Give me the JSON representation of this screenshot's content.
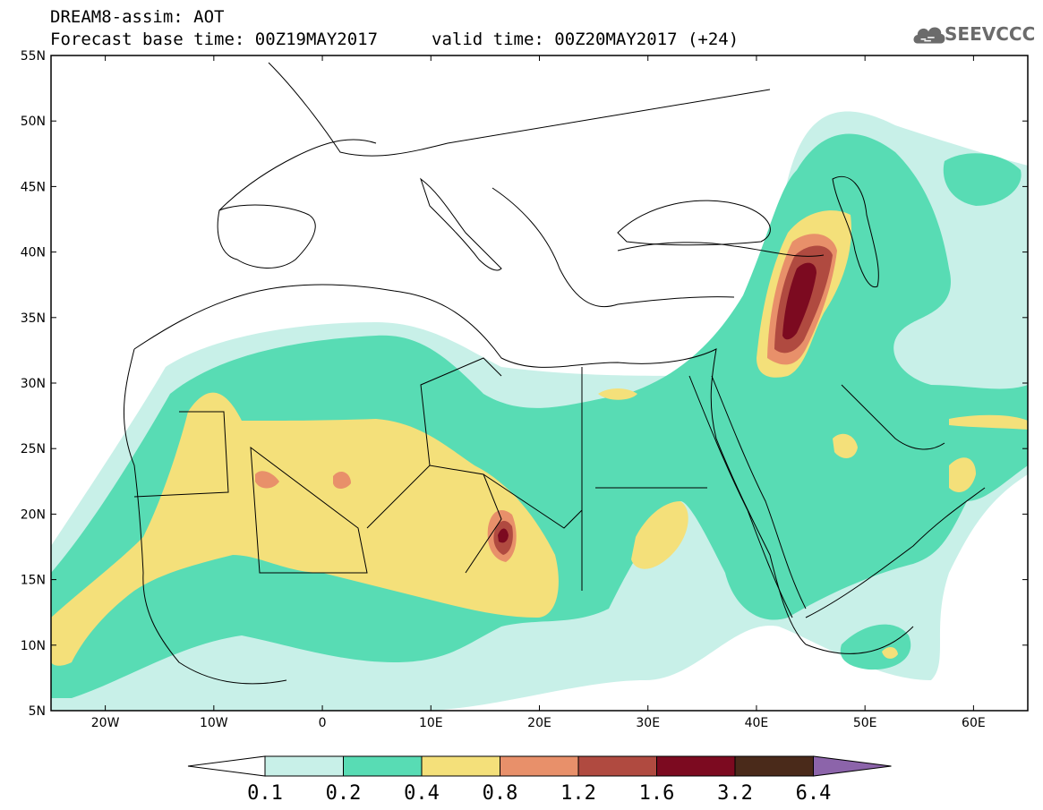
{
  "header": {
    "line1": "DREAM8-assim: AOT",
    "line2": "Forecast base time: 00Z19MAY2017",
    "line3": "valid time: 00Z20MAY2017 (+24)",
    "logo_text": "SEEVCCC"
  },
  "map": {
    "lon_range": [
      -25,
      65
    ],
    "lat_range": [
      5,
      55
    ],
    "lat_ticks": [
      "55N",
      "50N",
      "45N",
      "40N",
      "35N",
      "30N",
      "25N",
      "20N",
      "15N",
      "10N",
      "5N"
    ],
    "lon_ticks": [
      "20W",
      "10W",
      "0",
      "10E",
      "20E",
      "30E",
      "40E",
      "50E",
      "60E"
    ]
  },
  "colorbar": {
    "colors": [
      "#ffffff",
      "#c8f0e8",
      "#58dcb4",
      "#f4e07a",
      "#e8906a",
      "#b04a40",
      "#7c0a20",
      "#4a2a1a",
      "#8c64aa"
    ],
    "labels": [
      "0.1",
      "0.2",
      "0.4",
      "0.8",
      "1.2",
      "1.6",
      "3.2",
      "6.4"
    ]
  }
}
